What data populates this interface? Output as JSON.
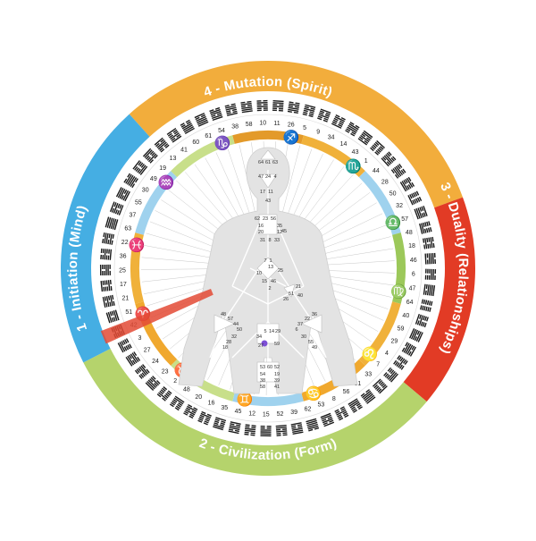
{
  "quarters": [
    {
      "label": "4 - Mutation (Spirit)",
      "color": "#f2ad3c",
      "start": -42,
      "end": 70
    },
    {
      "label": "3 - Duality (Relationships)",
      "color": "#e23b25",
      "start": 70,
      "end": 130
    },
    {
      "label": "2 - Civilization (Form)",
      "color": "#b5d36c",
      "start": 130,
      "end": 243
    },
    {
      "label": "1 - Initiation (Mind)",
      "color": "#45aee3",
      "start": 243,
      "end": 318
    }
  ],
  "gates": [
    "10",
    "11",
    "26",
    "5",
    "9",
    "34",
    "14",
    "43",
    "1",
    "44",
    "28",
    "50",
    "32",
    "57",
    "48",
    "18",
    "46",
    "6",
    "47",
    "64",
    "40",
    "59",
    "29",
    "4",
    "7",
    "33",
    "31",
    "56",
    "8",
    "53",
    "62",
    "39",
    "52",
    "15",
    "12",
    "45",
    "35",
    "16",
    "20",
    "48",
    "2",
    "23",
    "24",
    "27",
    "3",
    "42",
    "51",
    "21",
    "17",
    "25",
    "36",
    "22",
    "63",
    "37",
    "55",
    "30",
    "49",
    "19",
    "13",
    "41",
    "60",
    "61",
    "54",
    "38",
    "58"
  ],
  "zodiac_glyphs": [
    "♑",
    "♐",
    "♏",
    "♎",
    "♍",
    "♌",
    "♋",
    "♊",
    "♉",
    "♈",
    "♓",
    "♒"
  ],
  "zodiac_colors": [
    "#a06a10",
    "#a06a10",
    "#1f6fb0",
    "#5b8f2a",
    "#7a5a10",
    "#b35b12",
    "#2d6fa3",
    "#2d6fa3",
    "#b05a1c",
    "#b05a1c",
    "#2d6fa3",
    "#6d8f2a"
  ],
  "zodiac_ring_colors": [
    "#e39a2a",
    "#f0b13a",
    "#9fd2ee",
    "#9cc85a",
    "#f0b13a",
    "#f0a82e",
    "#9fd2ee",
    "#c8df8a",
    "#f0a82e",
    "#f0b13a",
    "#9fd2ee",
    "#c8df8a"
  ],
  "body_numbers": [
    "64",
    "61",
    "63",
    "47",
    "24",
    "4",
    "17",
    "11",
    "43",
    "62",
    "23",
    "56",
    "16",
    "35",
    "20",
    "12",
    "31",
    "8",
    "33",
    "45",
    "7",
    "1",
    "13",
    "10",
    "25",
    "15",
    "46",
    "2",
    "21",
    "51",
    "26",
    "40",
    "48",
    "57",
    "44",
    "50",
    "32",
    "28",
    "18",
    "36",
    "22",
    "37",
    "6",
    "5",
    "14",
    "29",
    "34",
    "27",
    "59",
    "53",
    "60",
    "52",
    "54",
    "19",
    "38",
    "39",
    "58",
    "41",
    "30",
    "55",
    "49"
  ],
  "colors": {
    "body": "#e3e3e3",
    "body_edge": "#cfcfcf",
    "line": "#c8c8c8",
    "highlight": "#e34a35",
    "center_dot": "#7d4fd6"
  }
}
